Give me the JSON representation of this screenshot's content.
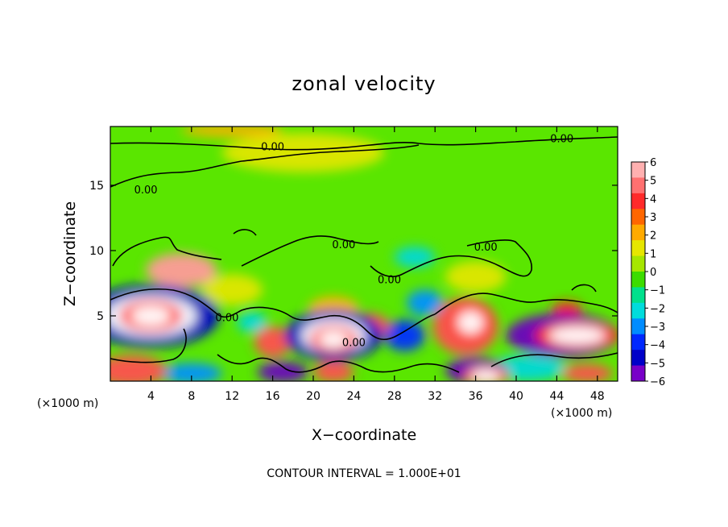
{
  "chart_data": {
    "type": "heatmap",
    "title": "zonal velocity",
    "xlabel": "X−coordinate",
    "ylabel": "Z−coordinate",
    "x_unit": "(×1000 m)",
    "y_unit": "(×1000 m)",
    "xlim": [
      0,
      50
    ],
    "ylim": [
      0,
      19.5
    ],
    "x_ticks": [
      4,
      8,
      12,
      16,
      20,
      24,
      28,
      32,
      36,
      40,
      44,
      48
    ],
    "y_ticks": [
      5,
      10,
      15
    ],
    "colorbar": {
      "ticks": [
        "6",
        "5",
        "4",
        "3",
        "2",
        "1",
        "0",
        "−1",
        "−2",
        "−3",
        "−4",
        "−5",
        "−6"
      ],
      "colors": [
        "#ffb0b0",
        "#ff7070",
        "#ff2a2a",
        "#ff6600",
        "#ffaa00",
        "#e6e600",
        "#a6e600",
        "#3cdc00",
        "#00e08c",
        "#00dcdc",
        "#008cff",
        "#0028ff",
        "#0000c8",
        "#7800c8"
      ]
    },
    "contour_level": "0.00",
    "contour_interval": "CONTOUR INTERVAL = 1.000E+01",
    "contour_labels": [
      {
        "text": "0.00",
        "x": 16.0,
        "z": 18.0
      },
      {
        "text": "0.00",
        "x": 44.5,
        "z": 18.6
      },
      {
        "text": "0.00",
        "x": 3.5,
        "z": 14.7
      },
      {
        "text": "0.00",
        "x": 23.0,
        "z": 10.5
      },
      {
        "text": "0.00",
        "x": 37.0,
        "z": 10.3
      },
      {
        "text": "0.00",
        "x": 27.5,
        "z": 7.8
      },
      {
        "text": "0.00",
        "x": 11.5,
        "z": 4.9
      },
      {
        "text": "0.00",
        "x": 24.0,
        "z": 3.0
      }
    ],
    "blobs": [
      {
        "x": 4.0,
        "z": 5.0,
        "rx": 4.5,
        "rz": 1.6,
        "v": -7
      },
      {
        "x": 4.0,
        "z": 5.0,
        "rx": 2.0,
        "rz": 0.8,
        "v": 7
      },
      {
        "x": 2.0,
        "z": 0.8,
        "rx": 3.5,
        "rz": 1.2,
        "v": 5
      },
      {
        "x": 8.0,
        "z": 0.6,
        "rx": 3.0,
        "rz": 0.8,
        "v": -3
      },
      {
        "x": 7.0,
        "z": 8.5,
        "rx": 3.5,
        "rz": 1.3,
        "v": 6
      },
      {
        "x": 16.0,
        "z": 3.0,
        "rx": 1.8,
        "rz": 1.2,
        "v": 5
      },
      {
        "x": 17.0,
        "z": 0.7,
        "rx": 2.5,
        "rz": 0.8,
        "v": -6
      },
      {
        "x": 22.0,
        "z": 3.5,
        "rx": 3.2,
        "rz": 1.3,
        "v": -7
      },
      {
        "x": 22.0,
        "z": 3.2,
        "rx": 1.5,
        "rz": 0.7,
        "v": 7
      },
      {
        "x": 22.0,
        "z": 0.7,
        "rx": 2.0,
        "rz": 0.8,
        "v": 5
      },
      {
        "x": 25.5,
        "z": 4.2,
        "rx": 2.0,
        "rz": 1.0,
        "v": 5
      },
      {
        "x": 29.0,
        "z": 3.5,
        "rx": 2.0,
        "rz": 1.2,
        "v": -4
      },
      {
        "x": 35.0,
        "z": 4.2,
        "rx": 3.2,
        "rz": 2.2,
        "v": 5
      },
      {
        "x": 35.5,
        "z": 4.5,
        "rx": 1.3,
        "rz": 0.9,
        "v": 7
      },
      {
        "x": 36.0,
        "z": 0.8,
        "rx": 3.0,
        "rz": 1.0,
        "v": -6
      },
      {
        "x": 37.0,
        "z": 0.4,
        "rx": 1.5,
        "rz": 0.5,
        "v": 7
      },
      {
        "x": 44.5,
        "z": 3.5,
        "rx": 5.5,
        "rz": 1.7,
        "v": -6
      },
      {
        "x": 46.0,
        "z": 3.5,
        "rx": 2.8,
        "rz": 0.7,
        "v": 7
      },
      {
        "x": 41.0,
        "z": 1.0,
        "rx": 4.0,
        "rz": 1.0,
        "v": -2
      },
      {
        "x": 47.0,
        "z": 0.6,
        "rx": 2.5,
        "rz": 0.7,
        "v": 5
      },
      {
        "x": 31.0,
        "z": 6.0,
        "rx": 1.8,
        "rz": 1.0,
        "v": -3
      },
      {
        "x": 22.0,
        "z": 5.5,
        "rx": 2.5,
        "rz": 1.0,
        "v": 2
      },
      {
        "x": 36.0,
        "z": 8.0,
        "rx": 3.0,
        "rz": 1.2,
        "v": 1
      },
      {
        "x": 12.0,
        "z": 7.0,
        "rx": 3.0,
        "rz": 1.2,
        "v": 1
      },
      {
        "x": 45.0,
        "z": 5.5,
        "rx": 1.5,
        "rz": 0.6,
        "v": 4
      },
      {
        "x": 19.0,
        "z": 17.5,
        "rx": 8.0,
        "rz": 1.5,
        "v": 1
      },
      {
        "x": 12.0,
        "z": 19.2,
        "rx": 5.0,
        "rz": 0.5,
        "v": 2
      },
      {
        "x": 30.0,
        "z": 9.5,
        "rx": 2.0,
        "rz": 0.8,
        "v": -2
      },
      {
        "x": 14.0,
        "z": 4.5,
        "rx": 1.5,
        "rz": 0.8,
        "v": -2
      }
    ]
  }
}
